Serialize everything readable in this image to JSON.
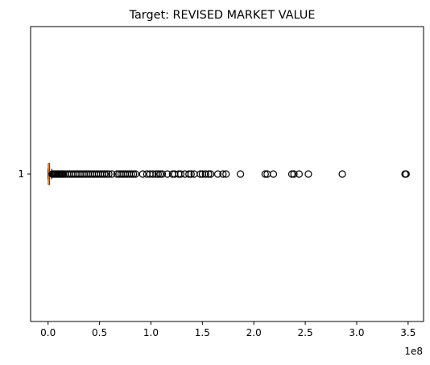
{
  "chart_data": {
    "type": "boxplot",
    "orientation": "horizontal",
    "title": "Target: REVISED MARKET VALUE",
    "xlabel": "",
    "ylabel": "",
    "x_scale_label": "1e8",
    "xlim": [
      -0.17,
      3.65
    ],
    "xticks": [
      0.0,
      0.5,
      1.0,
      1.5,
      2.0,
      2.5,
      3.0,
      3.5
    ],
    "xtick_labels": [
      "0.0",
      "0.5",
      "1.0",
      "1.5",
      "2.0",
      "2.5",
      "3.0",
      "3.5"
    ],
    "yticks": [
      1
    ],
    "ytick_labels": [
      "1"
    ],
    "grid": false,
    "colors": {
      "box": "#000000",
      "median": "#ff7f0e",
      "flier_edge": "#000000"
    },
    "box": {
      "whisker_low": 0.0,
      "q1": 0.003,
      "median": 0.008,
      "q3": 0.015,
      "whisker_high": 0.035
    },
    "outliers": [
      0.04,
      0.05,
      0.06,
      0.07,
      0.08,
      0.09,
      0.1,
      0.11,
      0.12,
      0.13,
      0.14,
      0.15,
      0.17,
      0.19,
      0.21,
      0.23,
      0.25,
      0.27,
      0.29,
      0.31,
      0.33,
      0.35,
      0.37,
      0.39,
      0.41,
      0.43,
      0.45,
      0.47,
      0.49,
      0.51,
      0.53,
      0.55,
      0.57,
      0.59,
      0.62,
      0.67,
      0.69,
      0.71,
      0.73,
      0.75,
      0.77,
      0.79,
      0.81,
      0.83,
      0.85,
      0.92,
      0.96,
      0.99,
      1.02,
      1.05,
      1.07,
      1.09,
      1.11,
      1.16,
      1.21,
      1.23,
      1.27,
      1.29,
      1.33,
      1.37,
      1.39,
      1.42,
      1.48,
      1.5,
      1.53,
      1.56,
      1.58,
      1.65,
      1.7,
      1.73,
      1.87,
      2.11,
      2.13,
      2.19,
      2.37,
      2.39,
      2.44,
      2.53,
      2.86,
      3.47,
      3.48
    ]
  }
}
